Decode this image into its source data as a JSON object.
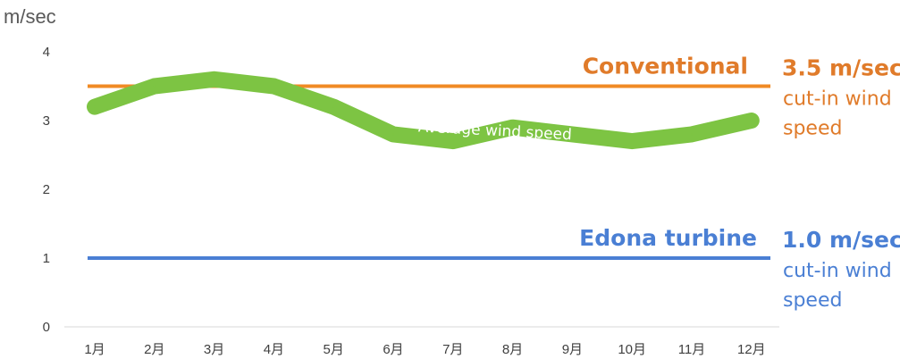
{
  "chart_data": {
    "type": "line",
    "ylabel": "m/sec",
    "ylim": [
      0,
      4
    ],
    "yticks": [
      "0",
      "1",
      "2",
      "3",
      "4"
    ],
    "categories": [
      "1月",
      "2月",
      "3月",
      "4月",
      "5月",
      "6月",
      "7月",
      "8月",
      "9月",
      "10月",
      "11月",
      "12月"
    ],
    "series": [
      {
        "name": "Average wind speed",
        "color": "#7DC443",
        "values": [
          3.2,
          3.5,
          3.6,
          3.5,
          3.2,
          2.8,
          2.7,
          2.9,
          2.8,
          2.7,
          2.8,
          3.0
        ]
      }
    ],
    "reference_lines": [
      {
        "id": "conventional",
        "value": 3.5,
        "color": "#F08A24",
        "text_color": "#E07B2A",
        "label": "Conventional",
        "value_label": "3.5 m/sec",
        "desc_line1": "cut-in wind",
        "desc_line2": "speed"
      },
      {
        "id": "edona",
        "value": 1.0,
        "color": "#4A7FD4",
        "text_color": "#4A7FD4",
        "label": "Edona turbine",
        "value_label": "1.0 m/sec",
        "desc_line1": "cut-in wind",
        "desc_line2": "speed"
      }
    ],
    "grid": false,
    "legend": "none"
  }
}
